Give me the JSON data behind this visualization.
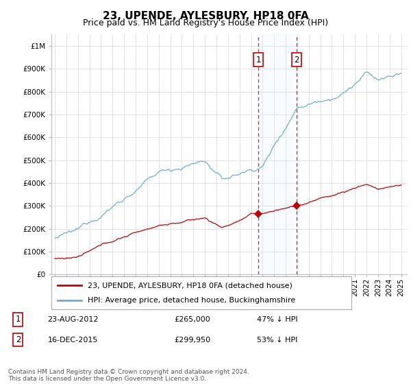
{
  "title": "23, UPENDE, AYLESBURY, HP18 0FA",
  "subtitle": "Price paid vs. HM Land Registry's House Price Index (HPI)",
  "ylim": [
    0,
    1050000
  ],
  "yticks": [
    0,
    100000,
    200000,
    300000,
    400000,
    500000,
    600000,
    700000,
    800000,
    900000,
    1000000
  ],
  "ytick_labels": [
    "£0",
    "£100K",
    "£200K",
    "£300K",
    "£400K",
    "£500K",
    "£600K",
    "£700K",
    "£800K",
    "£900K",
    "£1M"
  ],
  "x_start_year": 1995,
  "x_end_year": 2025,
  "sale1_year": 2012.646,
  "sale1_price": 265000,
  "sale2_year": 2015.959,
  "sale2_price": 299950,
  "sale1_text": "23-AUG-2012",
  "sale1_amount": "£265,000",
  "sale1_pct": "47% ↓ HPI",
  "sale2_text": "16-DEC-2015",
  "sale2_amount": "£299,950",
  "sale2_pct": "53% ↓ HPI",
  "hpi_line_color": "#6aaed6",
  "hpi_fill_color": "#ddeeff",
  "sale_color": "#c00000",
  "legend_label1": "23, UPENDE, AYLESBURY, HP18 0FA (detached house)",
  "legend_label2": "HPI: Average price, detached house, Buckinghamshire",
  "footer": "Contains HM Land Registry data © Crown copyright and database right 2024.\nThis data is licensed under the Open Government Licence v3.0.",
  "bg_color": "#ffffff",
  "grid_color": "#dddddd",
  "title_fontsize": 11,
  "subtitle_fontsize": 9,
  "axis_fontsize": 7.5,
  "legend_fontsize": 8,
  "footer_fontsize": 6.5
}
